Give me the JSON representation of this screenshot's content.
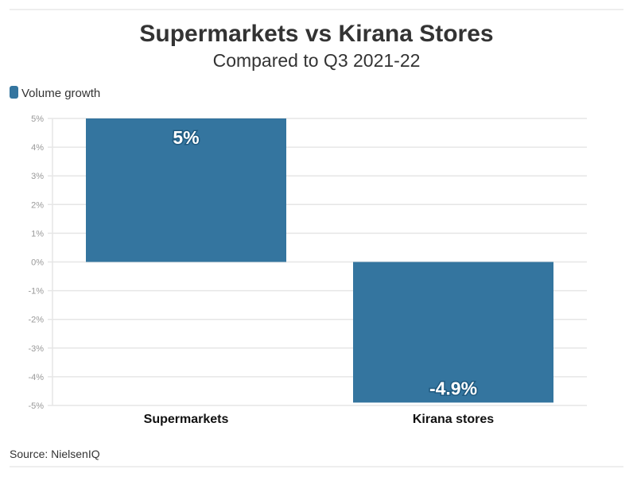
{
  "chart_data": {
    "type": "bar",
    "title": "Supermarkets vs Kirana Stores",
    "subtitle": "Compared to Q3 2021-22",
    "categories": [
      "Supermarkets",
      "Kirana stores"
    ],
    "series": [
      {
        "name": "Volume growth",
        "values": [
          5,
          -4.9
        ],
        "color": "#34759f"
      }
    ],
    "data_labels": [
      "5%",
      "-4.9%"
    ],
    "ylim": [
      -5,
      5
    ],
    "yticks": [
      5,
      4,
      3,
      2,
      1,
      0,
      -1,
      -2,
      -3,
      -4,
      -5
    ],
    "ytick_labels": [
      "5%",
      "4%",
      "3%",
      "2%",
      "1%",
      "0%",
      "-1%",
      "-2%",
      "-3%",
      "-4%",
      "-5%"
    ],
    "xlabel": "",
    "ylabel": "",
    "grid": true,
    "legend_position": "top-left",
    "source": "Source: NielsenIQ"
  }
}
